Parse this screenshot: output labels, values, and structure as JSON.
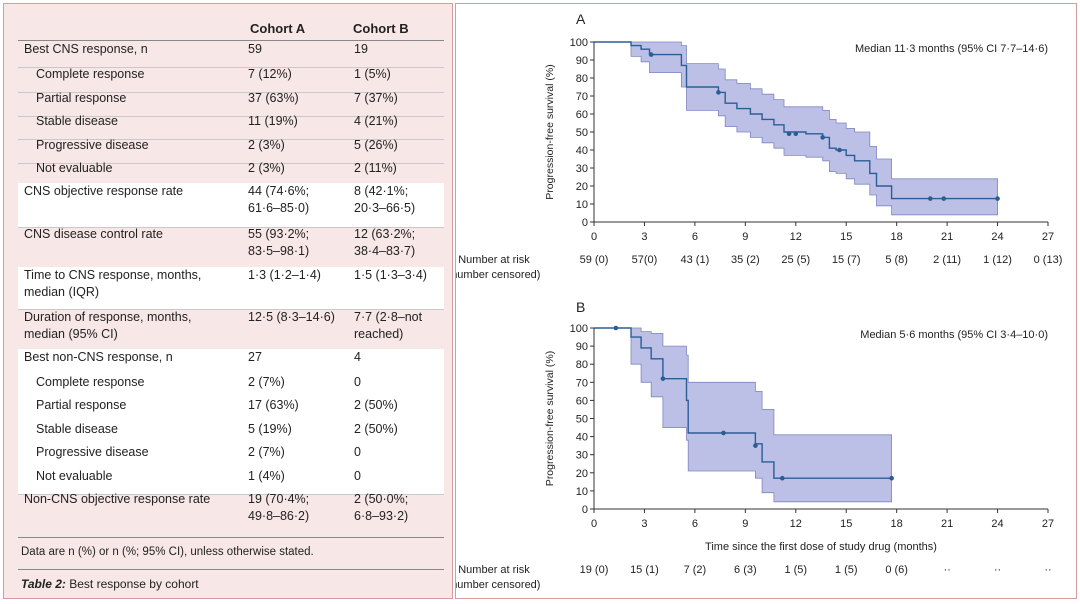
{
  "table": {
    "header_a": "Cohort A",
    "header_b": "Cohort B",
    "rows": [
      {
        "label": "Best CNS response, n",
        "a": "59",
        "b": "19",
        "indent": false,
        "bg": "pink"
      },
      {
        "label": "Complete response",
        "a": "7 (12%)",
        "b": "1 (5%)",
        "indent": true,
        "bg": "pink"
      },
      {
        "label": "Partial response",
        "a": "37 (63%)",
        "b": "7 (37%)",
        "indent": true,
        "bg": "pink"
      },
      {
        "label": "Stable disease",
        "a": "11 (19%)",
        "b": "4 (21%)",
        "indent": true,
        "bg": "pink"
      },
      {
        "label": "Progressive disease",
        "a": "2 (3%)",
        "b": "5 (26%)",
        "indent": true,
        "bg": "pink"
      },
      {
        "label": "Not evaluable",
        "a": "2 (3%)",
        "b": "2 (11%)",
        "indent": true,
        "bg": "pink"
      },
      {
        "label": "CNS objective response rate",
        "a": "44 (74·6%;\n61·6–85·0)",
        "b": "8 (42·1%;\n20·3–66·5)",
        "indent": false,
        "bg": "white"
      },
      {
        "label": "CNS disease control rate",
        "a": "55 (93·2%;\n83·5–98·1)",
        "b": "12 (63·2%;\n38·4–83·7)",
        "indent": false,
        "bg": "pink"
      },
      {
        "label": "Time to CNS response, months,\nmedian (IQR)",
        "a": "1·3 (1·2–1·4)",
        "b": "1·5 (1·3–3·4)",
        "indent": false,
        "bg": "white"
      },
      {
        "label": "Duration of response, months,\nmedian (95% CI)",
        "a": "12·5 (8·3–14·6)",
        "b": "7·7 (2·8–not\nreached)",
        "indent": false,
        "bg": "pink"
      },
      {
        "label": "Best non-CNS response, n",
        "a": "27",
        "b": "4",
        "indent": false,
        "bg": "white"
      },
      {
        "label": "Complete response",
        "a": "2 (7%)",
        "b": "0",
        "indent": true,
        "bg": "white"
      },
      {
        "label": "Partial response",
        "a": "17 (63%)",
        "b": "2 (50%)",
        "indent": true,
        "bg": "white"
      },
      {
        "label": "Stable disease",
        "a": "5 (19%)",
        "b": "2 (50%)",
        "indent": true,
        "bg": "white"
      },
      {
        "label": "Progressive disease",
        "a": "2 (7%)",
        "b": "0",
        "indent": true,
        "bg": "white"
      },
      {
        "label": "Not evaluable",
        "a": "1 (4%)",
        "b": "0",
        "indent": true,
        "bg": "white"
      },
      {
        "label": "Non-CNS objective response rate",
        "a": "19 (70·4%;\n49·8–86·2)",
        "b": "2 (50·0%;\n6·8–93·2)",
        "indent": false,
        "bg": "pink"
      }
    ],
    "footnote": "Data are n (%) or n (%; 95% CI), unless otherwise stated.",
    "caption_label": "Table 2:",
    "caption_text": " Best response by cohort"
  },
  "chart_data": [
    {
      "type": "line",
      "panel_label": "A",
      "annotation": "Median 11·3 months (95% CI 7·7–14·6)",
      "ylabel": "Progression-free survival (%)",
      "xlabel": "",
      "xlim": [
        0,
        27
      ],
      "ylim": [
        0,
        100
      ],
      "x_ticks": [
        0,
        3,
        6,
        9,
        12,
        15,
        18,
        21,
        24,
        27
      ],
      "y_ticks": [
        0,
        10,
        20,
        30,
        40,
        50,
        60,
        70,
        80,
        90,
        100
      ],
      "series": [
        {
          "x": [
            0,
            1.0,
            2.2,
            2.8,
            3.3,
            5.2,
            5.5,
            7.4,
            7.8,
            8.5,
            9.3,
            10.0,
            10.7,
            11.3,
            12.6,
            13.6,
            14.0,
            14.4,
            15.0,
            15.5,
            16.4,
            16.8,
            17.7,
            24.0
          ],
          "y": [
            100,
            100,
            98,
            96,
            93,
            87,
            75,
            72,
            66,
            63,
            60,
            57,
            54,
            50,
            49,
            47,
            41,
            40,
            37,
            34,
            27,
            20,
            13,
            13
          ],
          "ci_upper": [
            100,
            100,
            100,
            100,
            100,
            98,
            88,
            85,
            79,
            77,
            74,
            71,
            68,
            64,
            64,
            62,
            57,
            55,
            52,
            50,
            42,
            35,
            24,
            24
          ],
          "ci_lower": [
            100,
            100,
            92,
            89,
            83,
            75,
            62,
            59,
            53,
            50,
            47,
            44,
            41,
            37,
            36,
            34,
            28,
            27,
            24,
            21,
            15,
            9,
            4,
            4
          ],
          "censored": [
            [
              3.4,
              93
            ],
            [
              7.4,
              72
            ],
            [
              11.6,
              49
            ],
            [
              12.0,
              49
            ],
            [
              13.6,
              47
            ],
            [
              14.6,
              40
            ],
            [
              20.0,
              13
            ],
            [
              20.8,
              13
            ],
            [
              24.0,
              13
            ]
          ]
        }
      ],
      "risk_label_1": "Number at risk",
      "risk_label_2": "(number censored)",
      "risk_values": [
        "59 (0)",
        "57(0)",
        "43 (1)",
        "35 (2)",
        "25 (5)",
        "15 (7)",
        "5 (8)",
        "2 (11)",
        "1 (12)",
        "0 (13)"
      ]
    },
    {
      "type": "line",
      "panel_label": "B",
      "annotation": "Median 5·6 months (95% CI 3·4–10·0)",
      "ylabel": "Progression-free survival (%)",
      "xlabel": "Time since the first dose of study drug (months)",
      "xlim": [
        0,
        27
      ],
      "ylim": [
        0,
        100
      ],
      "x_ticks": [
        0,
        3,
        6,
        9,
        12,
        15,
        18,
        21,
        24,
        27
      ],
      "y_ticks": [
        0,
        10,
        20,
        30,
        40,
        50,
        60,
        70,
        80,
        90,
        100
      ],
      "series": [
        {
          "x": [
            0,
            1.3,
            2.2,
            2.8,
            3.4,
            4.1,
            5.5,
            5.6,
            9.2,
            9.6,
            10.0,
            10.7,
            17.7
          ],
          "y": [
            100,
            100,
            95,
            89,
            83,
            72,
            60,
            42,
            42,
            36,
            26,
            17,
            17
          ],
          "ci_upper": [
            100,
            100,
            100,
            98,
            97,
            90,
            85,
            70,
            70,
            65,
            55,
            41,
            41
          ],
          "ci_lower": [
            100,
            100,
            80,
            70,
            62,
            45,
            38,
            21,
            21,
            17,
            9,
            4,
            4
          ],
          "censored": [
            [
              1.3,
              100
            ],
            [
              4.1,
              72
            ],
            [
              7.7,
              42
            ],
            [
              9.6,
              35
            ],
            [
              11.2,
              17
            ],
            [
              17.7,
              17
            ]
          ]
        }
      ],
      "risk_label_1": "Number at risk",
      "risk_label_2": "(number censored)",
      "risk_values": [
        "19 (0)",
        "15 (1)",
        "7 (2)",
        "6 (3)",
        "1 (5)",
        "1 (5)",
        "0 (6)",
        "··",
        "··",
        "··"
      ]
    }
  ],
  "colors": {
    "band": "#bcc0e6",
    "line": "#2b5d94",
    "table_bg": "#f8e7e7",
    "border": "#d99a9a"
  }
}
